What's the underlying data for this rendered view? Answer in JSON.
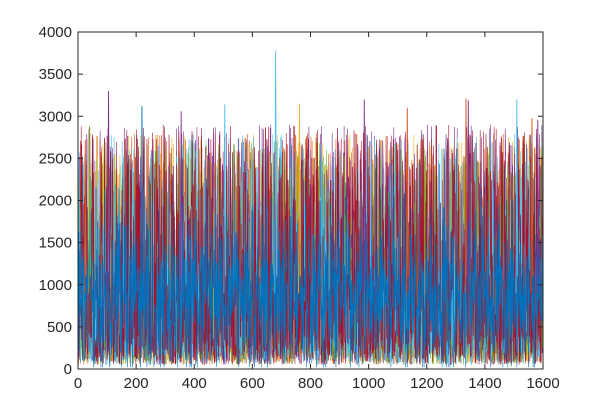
{
  "chart_data": {
    "type": "line",
    "title": "",
    "xlabel": "",
    "ylabel": "",
    "xlim": [
      0,
      1600
    ],
    "ylim": [
      0,
      4000
    ],
    "x_ticks": [
      0,
      200,
      400,
      600,
      800,
      1000,
      1200,
      1400,
      1600
    ],
    "x_tick_labels": [
      "0",
      "200",
      "400",
      "600",
      "800",
      "1000",
      "1200",
      "1400",
      "1600"
    ],
    "y_ticks": [
      0,
      500,
      1000,
      1500,
      2000,
      2500,
      3000,
      3500,
      4000
    ],
    "y_tick_labels": [
      "0",
      "500",
      "1000",
      "1500",
      "2000",
      "2500",
      "3000",
      "3500",
      "4000"
    ],
    "grid": false,
    "legend": "none",
    "n_points": 1600,
    "colors": [
      "#0072BD",
      "#D95319",
      "#EDB120",
      "#7E2F8E",
      "#77AC30",
      "#4DBEEE",
      "#A2142F"
    ],
    "series": [
      {
        "color": "#0072BD",
        "values_summary": {
          "typical_min": 50,
          "typical_max": 2300,
          "mean": 900
        }
      },
      {
        "color": "#D95319",
        "values_summary": {
          "typical_min": 50,
          "typical_max": 2800,
          "mean": 900
        }
      },
      {
        "color": "#EDB120",
        "values_summary": {
          "typical_min": 50,
          "typical_max": 2800,
          "mean": 900
        }
      },
      {
        "color": "#7E2F8E",
        "values_summary": {
          "typical_min": 50,
          "typical_max": 2900,
          "mean": 900
        }
      },
      {
        "color": "#77AC30",
        "values_summary": {
          "typical_min": 50,
          "typical_max": 2700,
          "mean": 900
        }
      },
      {
        "color": "#4DBEEE",
        "values_summary": {
          "typical_min": 50,
          "typical_max": 2800,
          "mean": 900
        }
      },
      {
        "color": "#A2142F",
        "values_summary": {
          "typical_min": 50,
          "typical_max": 2900,
          "mean": 900
        }
      }
    ],
    "peaks": [
      {
        "x": 680,
        "y": 3780,
        "color": "#4DBEEE"
      },
      {
        "x": 105,
        "y": 3300,
        "color": "#7E2F8E"
      },
      {
        "x": 1335,
        "y": 3210,
        "color": "#D95319"
      },
      {
        "x": 1343,
        "y": 3190,
        "color": "#7E2F8E"
      },
      {
        "x": 1510,
        "y": 3200,
        "color": "#4DBEEE"
      },
      {
        "x": 985,
        "y": 3200,
        "color": "#7E2F8E"
      },
      {
        "x": 220,
        "y": 3120,
        "color": "#0072BD"
      },
      {
        "x": 505,
        "y": 3140,
        "color": "#4DBEEE"
      },
      {
        "x": 355,
        "y": 3060,
        "color": "#7E2F8E"
      },
      {
        "x": 762,
        "y": 3150,
        "color": "#EDB120"
      },
      {
        "x": 1133,
        "y": 3100,
        "color": "#D95319"
      },
      {
        "x": 1562,
        "y": 2980,
        "color": "#D95319"
      },
      {
        "x": 1582,
        "y": 2960,
        "color": "#7E2F8E"
      },
      {
        "x": 40,
        "y": 2880,
        "color": "#77AC30"
      },
      {
        "x": 25,
        "y": 2720,
        "color": "#D95319"
      }
    ]
  }
}
